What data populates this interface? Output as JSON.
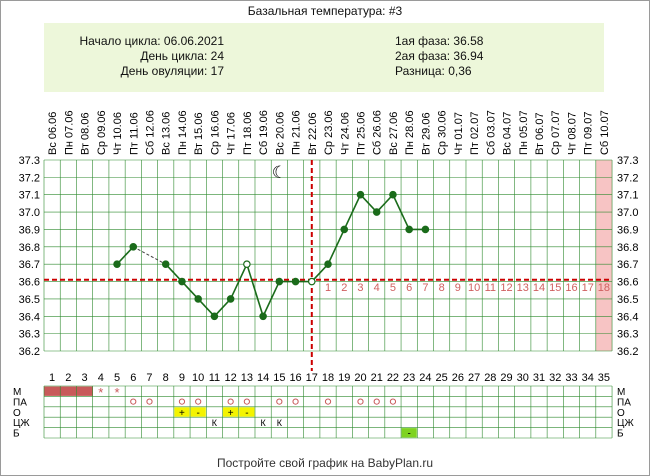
{
  "title": "Базальная температура: #3",
  "info": {
    "cycle_start": "Начало цикла: 06.06.2021",
    "cycle_day": "День цикла: 24",
    "ovulation_day": "День овуляции: 17",
    "phase1": "1ая фаза: 36.58",
    "phase2": "2ая фаза: 36.94",
    "difference": "Разница: 0,36"
  },
  "footer": "Постройте свой график на BabyPlan.ru",
  "chart_data": {
    "type": "line",
    "ylim": [
      36.2,
      37.3
    ],
    "yticks": [
      "36.2",
      "36.3",
      "36.4",
      "36.5",
      "36.6",
      "36.7",
      "36.8",
      "36.9",
      "37.0",
      "37.1",
      "37.2",
      "37.3"
    ],
    "cycle_days": 35,
    "dates": [
      "Вс 06.06",
      "Пн 07.06",
      "Вт 08.06",
      "Ср 09.06",
      "Чт 10.06",
      "Пт 11.06",
      "Сб 12.06",
      "Вс 13.06",
      "Пн 14.06",
      "Вт 15.06",
      "Ср 16.06",
      "Чт 17.06",
      "Пт 18.06",
      "Сб 19.06",
      "Вс 20.06",
      "Пн 21.06",
      "Вт 22.06",
      "Ср 23.06",
      "Чт 24.06",
      "Пт 25.06",
      "Сб 26.06",
      "Вс 27.06",
      "Пн 28.06",
      "Вт 29.06",
      "Ср 30.06",
      "Чт 01.07",
      "Пт 02.07",
      "Сб 03.07",
      "Вс 04.07",
      "Пн 05.07",
      "Вт 06.07",
      "Ср 07.07",
      "Чт 08.07",
      "Пт 09.07",
      "Сб 10.07"
    ],
    "day_labels": [
      "1",
      "2",
      "3",
      "4",
      "5",
      "6",
      "7",
      "8",
      "9",
      "10",
      "11",
      "12",
      "13",
      "14",
      "15",
      "16",
      "17",
      "18",
      "19",
      "20",
      "21",
      "22",
      "23",
      "24",
      "25",
      "26",
      "27",
      "28",
      "29",
      "30",
      "31",
      "32",
      "33",
      "34",
      "35"
    ],
    "temperatures": [
      {
        "day": 5,
        "value": 36.7
      },
      {
        "day": 6,
        "value": 36.8
      },
      {
        "day": 8,
        "value": 36.7
      },
      {
        "day": 9,
        "value": 36.6
      },
      {
        "day": 10,
        "value": 36.5
      },
      {
        "day": 11,
        "value": 36.4
      },
      {
        "day": 12,
        "value": 36.5
      },
      {
        "day": 13,
        "value": 36.7,
        "hollow": true
      },
      {
        "day": 14,
        "value": 36.4
      },
      {
        "day": 15,
        "value": 36.6
      },
      {
        "day": 16,
        "value": 36.6
      },
      {
        "day": 17,
        "value": 36.6,
        "hollow": true
      },
      {
        "day": 18,
        "value": 36.7
      },
      {
        "day": 19,
        "value": 36.9
      },
      {
        "day": 20,
        "value": 37.1
      },
      {
        "day": 21,
        "value": 37.0
      },
      {
        "day": 22,
        "value": 37.1
      },
      {
        "day": 23,
        "value": 36.9
      },
      {
        "day": 24,
        "value": 36.9
      }
    ],
    "dashed_segments": [
      [
        6,
        8
      ]
    ],
    "coverline": 36.61,
    "ovulation_day": 17,
    "luteal_labels": [
      "1",
      "2",
      "3",
      "4",
      "5",
      "6",
      "7",
      "8",
      "9",
      "10",
      "11",
      "12",
      "13",
      "14",
      "15",
      "16",
      "17",
      "18"
    ],
    "highlight_day": 35,
    "moon_day": 15,
    "colors": {
      "line": "#1a6b1a",
      "coverline": "#cc0000",
      "luteal": "#d06060",
      "highlight": "#f7c4c4",
      "grid": "#2e8a2e",
      "menses": "#c85a5a",
      "yellow": "#f4f400",
      "lime": "#7ed321"
    },
    "rows": [
      {
        "label": "М",
        "cells": [
          {
            "day": 1,
            "type": "bar"
          },
          {
            "day": 2,
            "type": "bar"
          },
          {
            "day": 3,
            "type": "bar"
          },
          {
            "day": 4,
            "type": "star"
          },
          {
            "day": 5,
            "type": "star"
          }
        ]
      },
      {
        "label": "ПА",
        "cells": [
          {
            "day": 6,
            "type": "circle"
          },
          {
            "day": 7,
            "type": "circle"
          },
          {
            "day": 9,
            "type": "circle"
          },
          {
            "day": 10,
            "type": "circle"
          },
          {
            "day": 12,
            "type": "circle"
          },
          {
            "day": 13,
            "type": "circle"
          },
          {
            "day": 15,
            "type": "circle"
          },
          {
            "day": 16,
            "type": "circle"
          },
          {
            "day": 18,
            "type": "circle"
          },
          {
            "day": 20,
            "type": "circle"
          },
          {
            "day": 21,
            "type": "circle"
          },
          {
            "day": 22,
            "type": "circle"
          }
        ]
      },
      {
        "label": "О",
        "cells": [
          {
            "day": 9,
            "type": "yellow",
            "text": "+"
          },
          {
            "day": 10,
            "type": "yellow",
            "text": "-"
          },
          {
            "day": 12,
            "type": "yellow",
            "text": "+"
          },
          {
            "day": 13,
            "type": "yellow",
            "text": "-"
          }
        ]
      },
      {
        "label": "ЦЖ",
        "cells": [
          {
            "day": 11,
            "type": "text",
            "text": "К"
          },
          {
            "day": 14,
            "type": "text",
            "text": "К"
          },
          {
            "day": 15,
            "type": "text",
            "text": "К"
          }
        ]
      },
      {
        "label": "Б",
        "cells": [
          {
            "day": 23,
            "type": "lime",
            "text": "-"
          }
        ]
      }
    ]
  }
}
